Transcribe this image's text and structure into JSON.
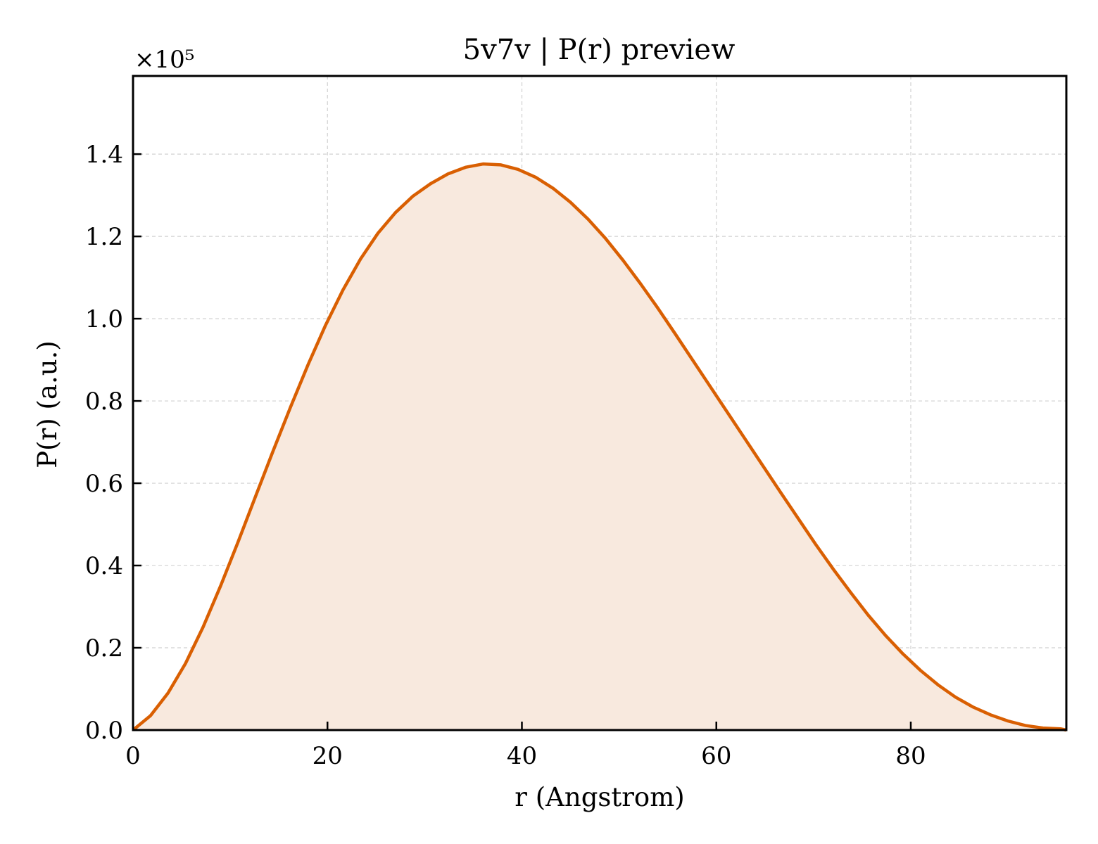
{
  "chart_data": {
    "type": "line",
    "title": "5v7v | P(r) preview",
    "xlabel": "r (Angstrom)",
    "ylabel": "P(r) (a.u.)",
    "y_offset_label": "×10⁵",
    "y_scale": 100000,
    "xlim": [
      0,
      96
    ],
    "ylim": [
      0,
      1.59
    ],
    "xticks": [
      0,
      20,
      40,
      60,
      80
    ],
    "xtick_labels": [
      "0",
      "20",
      "40",
      "60",
      "80"
    ],
    "yticks": [
      0.0,
      0.2,
      0.4,
      0.6,
      0.8,
      1.0,
      1.2,
      1.4
    ],
    "ytick_labels": [
      "0.0",
      "0.2",
      "0.4",
      "0.6",
      "0.8",
      "1.0",
      "1.2",
      "1.4"
    ],
    "grid": true,
    "fill_under": true,
    "colors": {
      "line": "#d95f02",
      "fill": "#f8e9de",
      "grid": "#d0d0d0",
      "axes": "#000000"
    },
    "series": [
      {
        "x": [
          0,
          1.8,
          3.6,
          5.4,
          7.2,
          9.0,
          10.8,
          12.6,
          14.4,
          16.2,
          18.0,
          19.8,
          21.6,
          23.4,
          25.2,
          27.0,
          28.8,
          30.6,
          32.4,
          34.2,
          36.0,
          37.8,
          39.6,
          41.4,
          43.2,
          45.0,
          46.8,
          48.6,
          50.4,
          52.2,
          54.0,
          55.8,
          57.6,
          59.4,
          61.2,
          63.0,
          64.8,
          66.6,
          68.4,
          70.2,
          72.0,
          73.8,
          75.6,
          77.4,
          79.2,
          81.0,
          82.8,
          84.6,
          86.4,
          88.2,
          90.0,
          91.8,
          93.6,
          95.4,
          96.0
        ],
        "values": [
          0.0,
          0.035,
          0.09,
          0.162,
          0.25,
          0.35,
          0.457,
          0.568,
          0.678,
          0.785,
          0.888,
          0.984,
          1.07,
          1.145,
          1.208,
          1.258,
          1.298,
          1.328,
          1.352,
          1.368,
          1.376,
          1.374,
          1.363,
          1.344,
          1.317,
          1.283,
          1.242,
          1.195,
          1.142,
          1.085,
          1.025,
          0.962,
          0.898,
          0.834,
          0.77,
          0.706,
          0.642,
          0.578,
          0.515,
          0.452,
          0.392,
          0.335,
          0.28,
          0.23,
          0.185,
          0.145,
          0.11,
          0.08,
          0.056,
          0.037,
          0.022,
          0.011,
          0.005,
          0.003,
          0.0
        ]
      }
    ]
  }
}
